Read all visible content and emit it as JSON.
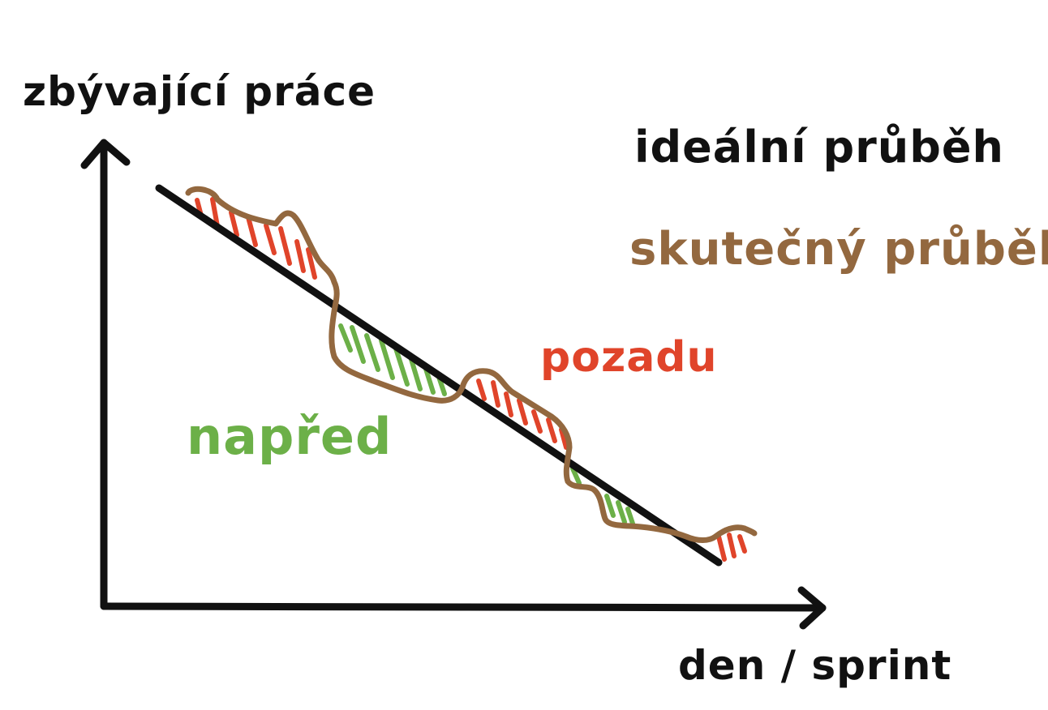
{
  "labels": {
    "y_axis": "zbývající práce",
    "x_axis": "den / sprint",
    "legend_ideal": "ideální průběh",
    "legend_actual": "skutečný průběh",
    "behind": "pozadu",
    "ahead": "napřed"
  },
  "colors": {
    "ideal": "#111111",
    "actual": "#93683f",
    "behind": "#e0442a",
    "ahead": "#6cb048",
    "axes": "#111111"
  }
}
